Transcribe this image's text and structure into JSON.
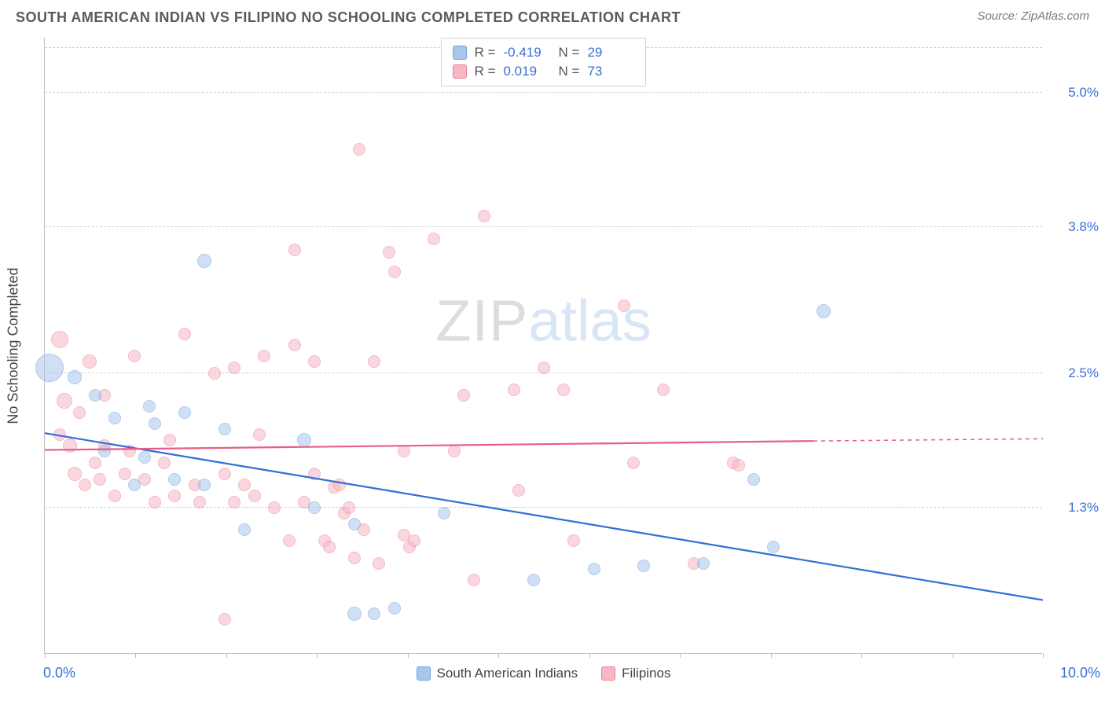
{
  "header": {
    "title": "SOUTH AMERICAN INDIAN VS FILIPINO NO SCHOOLING COMPLETED CORRELATION CHART",
    "source": "Source: ZipAtlas.com"
  },
  "watermark": {
    "part1": "ZIP",
    "part2": "atlas"
  },
  "chart": {
    "type": "scatter",
    "background_color": "#ffffff",
    "grid_color": "#d0d0d0",
    "axis_color": "#bfbfbf",
    "x": {
      "min": 0.0,
      "max": 10.0,
      "label_min": "0.0%",
      "label_max": "10.0%",
      "tick_count": 11
    },
    "y": {
      "min": 0.0,
      "max": 5.5,
      "ticks": [
        1.3,
        2.5,
        3.8,
        5.0
      ],
      "tick_labels": [
        "1.3%",
        "2.5%",
        "3.8%",
        "5.0%"
      ],
      "axis_label": "No Schooling Completed"
    },
    "series": [
      {
        "id": "sai",
        "label": "South American Indians",
        "fill": "#a9c7ec",
        "stroke": "#6fa0df",
        "fill_opacity": 0.55,
        "regression": {
          "x1": 0.0,
          "y1": 1.97,
          "x2": 10.0,
          "y2": 0.48,
          "color": "#2f6fd6",
          "width": 2.2,
          "dash_after_x": 10.0
        },
        "stats": {
          "R": "-0.419",
          "N": "29"
        },
        "points": [
          {
            "x": 0.05,
            "y": 2.55,
            "r": 18
          },
          {
            "x": 0.3,
            "y": 2.46,
            "r": 9
          },
          {
            "x": 0.7,
            "y": 2.1,
            "r": 8
          },
          {
            "x": 0.6,
            "y": 1.8,
            "r": 8
          },
          {
            "x": 0.5,
            "y": 2.3,
            "r": 8
          },
          {
            "x": 1.0,
            "y": 1.75,
            "r": 8
          },
          {
            "x": 1.05,
            "y": 2.2,
            "r": 8
          },
          {
            "x": 1.1,
            "y": 2.05,
            "r": 8
          },
          {
            "x": 1.3,
            "y": 1.55,
            "r": 8
          },
          {
            "x": 1.6,
            "y": 3.5,
            "r": 9
          },
          {
            "x": 1.6,
            "y": 1.5,
            "r": 8
          },
          {
            "x": 1.4,
            "y": 2.15,
            "r": 8
          },
          {
            "x": 2.0,
            "y": 1.1,
            "r": 8
          },
          {
            "x": 2.6,
            "y": 1.9,
            "r": 9
          },
          {
            "x": 2.7,
            "y": 1.3,
            "r": 8
          },
          {
            "x": 3.1,
            "y": 0.35,
            "r": 9
          },
          {
            "x": 3.3,
            "y": 0.35,
            "r": 8
          },
          {
            "x": 3.1,
            "y": 1.15,
            "r": 8
          },
          {
            "x": 3.5,
            "y": 0.4,
            "r": 8
          },
          {
            "x": 4.0,
            "y": 1.25,
            "r": 8
          },
          {
            "x": 4.9,
            "y": 0.65,
            "r": 8
          },
          {
            "x": 5.5,
            "y": 0.75,
            "r": 8
          },
          {
            "x": 6.0,
            "y": 0.78,
            "r": 8
          },
          {
            "x": 6.6,
            "y": 0.8,
            "r": 8
          },
          {
            "x": 7.1,
            "y": 1.55,
            "r": 8
          },
          {
            "x": 7.3,
            "y": 0.95,
            "r": 8
          },
          {
            "x": 7.8,
            "y": 3.05,
            "r": 9
          },
          {
            "x": 1.8,
            "y": 2.0,
            "r": 8
          },
          {
            "x": 0.9,
            "y": 1.5,
            "r": 8
          }
        ]
      },
      {
        "id": "fil",
        "label": "Filipinos",
        "fill": "#f7b8c4",
        "stroke": "#ec7f9a",
        "fill_opacity": 0.55,
        "regression": {
          "x1": 0.0,
          "y1": 1.82,
          "x2": 7.7,
          "y2": 1.9,
          "color": "#e85d87",
          "width": 2.2,
          "dash_after_x": 7.7,
          "x2_dash": 10.0,
          "y2_dash": 1.92
        },
        "stats": {
          "R": "0.019",
          "N": "73"
        },
        "points": [
          {
            "x": 0.15,
            "y": 2.8,
            "r": 11
          },
          {
            "x": 0.2,
            "y": 2.25,
            "r": 10
          },
          {
            "x": 0.25,
            "y": 1.85,
            "r": 9
          },
          {
            "x": 0.3,
            "y": 1.6,
            "r": 9
          },
          {
            "x": 0.35,
            "y": 2.15,
            "r": 8
          },
          {
            "x": 0.4,
            "y": 1.5,
            "r": 8
          },
          {
            "x": 0.45,
            "y": 2.6,
            "r": 9
          },
          {
            "x": 0.5,
            "y": 1.7,
            "r": 8
          },
          {
            "x": 0.55,
            "y": 1.55,
            "r": 8
          },
          {
            "x": 0.6,
            "y": 2.3,
            "r": 8
          },
          {
            "x": 0.7,
            "y": 1.4,
            "r": 8
          },
          {
            "x": 0.8,
            "y": 1.6,
            "r": 8
          },
          {
            "x": 0.85,
            "y": 1.8,
            "r": 8
          },
          {
            "x": 0.9,
            "y": 2.65,
            "r": 8
          },
          {
            "x": 1.0,
            "y": 1.55,
            "r": 8
          },
          {
            "x": 1.1,
            "y": 1.35,
            "r": 8
          },
          {
            "x": 1.2,
            "y": 1.7,
            "r": 8
          },
          {
            "x": 1.3,
            "y": 1.4,
            "r": 8
          },
          {
            "x": 1.4,
            "y": 2.85,
            "r": 8
          },
          {
            "x": 1.5,
            "y": 1.5,
            "r": 8
          },
          {
            "x": 1.55,
            "y": 1.35,
            "r": 8
          },
          {
            "x": 1.7,
            "y": 2.5,
            "r": 8
          },
          {
            "x": 1.8,
            "y": 1.6,
            "r": 8
          },
          {
            "x": 1.8,
            "y": 0.3,
            "r": 8
          },
          {
            "x": 1.9,
            "y": 1.35,
            "r": 8
          },
          {
            "x": 1.9,
            "y": 2.55,
            "r": 8
          },
          {
            "x": 2.0,
            "y": 1.5,
            "r": 8
          },
          {
            "x": 2.1,
            "y": 1.4,
            "r": 8
          },
          {
            "x": 2.2,
            "y": 2.65,
            "r": 8
          },
          {
            "x": 2.3,
            "y": 1.3,
            "r": 8
          },
          {
            "x": 2.5,
            "y": 3.6,
            "r": 8
          },
          {
            "x": 2.5,
            "y": 2.75,
            "r": 8
          },
          {
            "x": 2.6,
            "y": 1.35,
            "r": 8
          },
          {
            "x": 2.7,
            "y": 1.6,
            "r": 8
          },
          {
            "x": 2.7,
            "y": 2.6,
            "r": 8
          },
          {
            "x": 2.8,
            "y": 1.0,
            "r": 8
          },
          {
            "x": 2.85,
            "y": 0.95,
            "r": 8
          },
          {
            "x": 2.9,
            "y": 1.48,
            "r": 8
          },
          {
            "x": 2.95,
            "y": 1.5,
            "r": 8
          },
          {
            "x": 3.0,
            "y": 1.25,
            "r": 8
          },
          {
            "x": 3.05,
            "y": 1.3,
            "r": 8
          },
          {
            "x": 3.1,
            "y": 0.85,
            "r": 8
          },
          {
            "x": 3.15,
            "y": 4.5,
            "r": 8
          },
          {
            "x": 3.2,
            "y": 1.1,
            "r": 8
          },
          {
            "x": 3.3,
            "y": 2.6,
            "r": 8
          },
          {
            "x": 3.35,
            "y": 0.8,
            "r": 8
          },
          {
            "x": 3.45,
            "y": 3.58,
            "r": 8
          },
          {
            "x": 3.5,
            "y": 3.4,
            "r": 8
          },
          {
            "x": 3.6,
            "y": 1.05,
            "r": 8
          },
          {
            "x": 3.6,
            "y": 1.8,
            "r": 8
          },
          {
            "x": 3.65,
            "y": 0.95,
            "r": 8
          },
          {
            "x": 3.7,
            "y": 1.0,
            "r": 8
          },
          {
            "x": 3.9,
            "y": 3.7,
            "r": 8
          },
          {
            "x": 4.1,
            "y": 1.8,
            "r": 8
          },
          {
            "x": 4.2,
            "y": 2.3,
            "r": 8
          },
          {
            "x": 4.3,
            "y": 0.65,
            "r": 8
          },
          {
            "x": 4.4,
            "y": 3.9,
            "r": 8
          },
          {
            "x": 4.7,
            "y": 2.35,
            "r": 8
          },
          {
            "x": 4.75,
            "y": 1.45,
            "r": 8
          },
          {
            "x": 5.0,
            "y": 2.55,
            "r": 8
          },
          {
            "x": 5.2,
            "y": 2.35,
            "r": 8
          },
          {
            "x": 5.3,
            "y": 1.0,
            "r": 8
          },
          {
            "x": 5.8,
            "y": 3.1,
            "r": 8
          },
          {
            "x": 5.9,
            "y": 1.7,
            "r": 8
          },
          {
            "x": 6.2,
            "y": 2.35,
            "r": 8
          },
          {
            "x": 6.5,
            "y": 0.8,
            "r": 8
          },
          {
            "x": 6.9,
            "y": 1.7,
            "r": 8
          },
          {
            "x": 6.95,
            "y": 1.68,
            "r": 8
          },
          {
            "x": 0.15,
            "y": 1.95,
            "r": 8
          },
          {
            "x": 0.6,
            "y": 1.85,
            "r": 8
          },
          {
            "x": 1.25,
            "y": 1.9,
            "r": 8
          },
          {
            "x": 2.15,
            "y": 1.95,
            "r": 8
          },
          {
            "x": 2.45,
            "y": 1.0,
            "r": 8
          }
        ]
      }
    ],
    "legend_top": {
      "label_R": "R =",
      "label_N": "N ="
    },
    "legend_bottom": [
      {
        "series": "sai"
      },
      {
        "series": "fil"
      }
    ]
  }
}
